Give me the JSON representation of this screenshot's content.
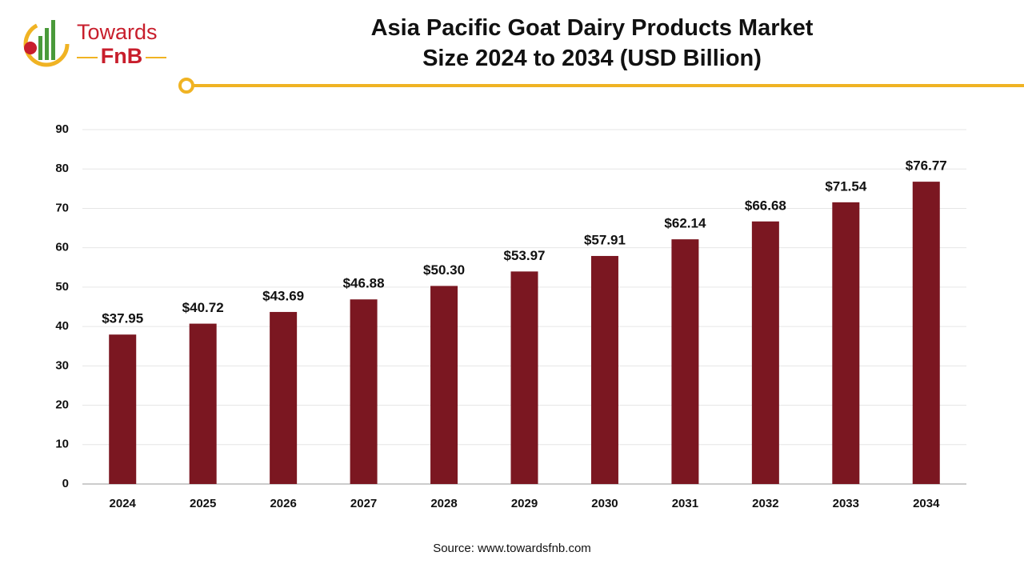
{
  "logo": {
    "name": "Towards",
    "sub": "FnB"
  },
  "chart_data": {
    "type": "bar",
    "title": "Asia Pacific Goat Dairy Products Market Size 2024 to 2034 (USD Billion)",
    "categories": [
      "2024",
      "2025",
      "2026",
      "2027",
      "2028",
      "2029",
      "2030",
      "2031",
      "2032",
      "2033",
      "2034"
    ],
    "values": [
      37.95,
      40.72,
      43.69,
      46.88,
      50.3,
      53.97,
      57.91,
      62.14,
      66.68,
      71.54,
      76.77
    ],
    "value_labels": [
      "$37.95",
      "$40.72",
      "$43.69",
      "$46.88",
      "$50.30",
      "$53.97",
      "$57.91",
      "$62.14",
      "$66.68",
      "$71.54",
      "$76.77"
    ],
    "color": "#7b1721",
    "ylim": [
      0,
      90
    ],
    "yticks": [
      0,
      10,
      20,
      30,
      40,
      50,
      60,
      70,
      80,
      90
    ],
    "grid": true,
    "source": "Source: www.towardsfnb.com"
  }
}
